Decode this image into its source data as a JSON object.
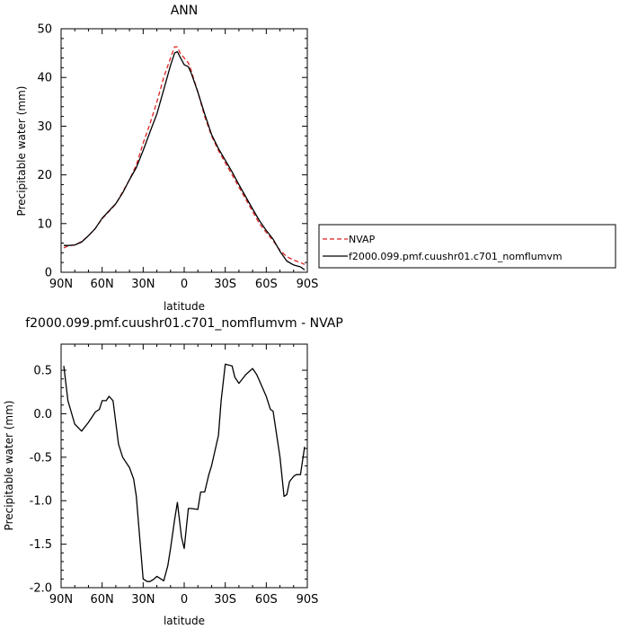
{
  "chart_data": [
    {
      "type": "line",
      "title": "ANN",
      "xlabel": "latitude",
      "ylabel": "Precipitable water  (mm)",
      "xlim": [
        90,
        -90
      ],
      "ylim": [
        0,
        50
      ],
      "xticks": [
        90,
        60,
        30,
        0,
        -30,
        -60,
        -90
      ],
      "xtick_labels": [
        "90N",
        "60N",
        "30N",
        "0",
        "30S",
        "60S",
        "90S"
      ],
      "yticks": [
        0,
        10,
        20,
        30,
        40,
        50
      ],
      "ytick_labels": [
        "0",
        "10",
        "20",
        "30",
        "40",
        "50"
      ],
      "legend_placement": "right",
      "series": [
        {
          "name": "NVAP",
          "color": "#dd2222",
          "dash": "dashed",
          "x": [
            88,
            85,
            80,
            75,
            70,
            65,
            60,
            55,
            50,
            45,
            40,
            35,
            30,
            25,
            20,
            15,
            10,
            7,
            5,
            3,
            0,
            -3,
            -5,
            -10,
            -15,
            -20,
            -25,
            -30,
            -35,
            -40,
            -45,
            -50,
            -55,
            -60,
            -65,
            -70,
            -75,
            -80,
            -85,
            -88
          ],
          "y": [
            5.0,
            5.4,
            5.6,
            6.3,
            7.5,
            9.0,
            11.0,
            12.5,
            14.0,
            16.5,
            19.0,
            22.0,
            26.5,
            30.5,
            35.0,
            40.0,
            44.0,
            46.3,
            46.3,
            45.0,
            44.0,
            43.0,
            41.5,
            37.0,
            32.0,
            28.0,
            25.0,
            22.5,
            20.0,
            17.5,
            15.0,
            12.5,
            10.0,
            8.2,
            6.5,
            4.5,
            3.2,
            2.5,
            2.0,
            1.6
          ]
        },
        {
          "name": "f2000.099.pmf.cuushr01.c701_nomflumvm",
          "color": "#000000",
          "dash": "solid",
          "x": [
            88,
            85,
            80,
            75,
            70,
            65,
            60,
            55,
            50,
            45,
            40,
            35,
            30,
            25,
            20,
            15,
            10,
            7,
            5,
            3,
            0,
            -3,
            -5,
            -10,
            -15,
            -20,
            -25,
            -30,
            -35,
            -40,
            -45,
            -50,
            -55,
            -60,
            -65,
            -70,
            -75,
            -80,
            -85,
            -88
          ],
          "y": [
            5.5,
            5.5,
            5.6,
            6.2,
            7.5,
            9.0,
            11.1,
            12.6,
            14.1,
            16.3,
            19.0,
            21.5,
            25.0,
            28.8,
            32.5,
            37.5,
            42.5,
            45.0,
            45.3,
            44.2,
            42.6,
            42.2,
            41.0,
            37.0,
            32.5,
            28.3,
            25.4,
            23.0,
            20.6,
            18.0,
            15.5,
            13.0,
            10.6,
            8.6,
            6.8,
            4.3,
            2.3,
            1.5,
            1.1,
            0.5
          ]
        }
      ]
    },
    {
      "type": "line",
      "title": "f2000.099.pmf.cuushr01.c701_nomflumvm - NVAP",
      "xlabel": "latitude",
      "ylabel": "Precipitable water  (mm)",
      "xlim": [
        90,
        -90
      ],
      "ylim": [
        -2.0,
        0.8
      ],
      "xticks": [
        90,
        60,
        30,
        0,
        -30,
        -60,
        -90
      ],
      "xtick_labels": [
        "90N",
        "60N",
        "30N",
        "0",
        "30S",
        "60S",
        "90S"
      ],
      "yticks": [
        -2.0,
        -1.5,
        -1.0,
        -0.5,
        0.0,
        0.5
      ],
      "ytick_labels": [
        "-2.0",
        "-1.5",
        "-1.0",
        "-0.5",
        "0.0",
        "0.5"
      ],
      "series": [
        {
          "color": "#000000",
          "dash": "solid",
          "x": [
            88,
            85,
            80,
            75,
            70,
            65,
            62,
            60,
            57,
            55,
            52,
            48,
            45,
            40,
            37,
            35,
            30,
            27,
            25,
            22,
            20,
            17,
            15,
            12,
            10,
            7,
            5,
            2,
            0,
            -3,
            -5,
            -10,
            -12,
            -15,
            -18,
            -20,
            -25,
            -27,
            -30,
            -35,
            -37,
            -40,
            -45,
            -50,
            -53,
            -55,
            -60,
            -63,
            -65,
            -70,
            -73,
            -75,
            -77,
            -80,
            -82,
            -85,
            -88
          ],
          "y": [
            0.55,
            0.15,
            -0.12,
            -0.2,
            -0.1,
            0.02,
            0.05,
            0.15,
            0.15,
            0.2,
            0.15,
            -0.35,
            -0.5,
            -0.62,
            -0.75,
            -0.95,
            -1.9,
            -1.93,
            -1.93,
            -1.9,
            -1.87,
            -1.9,
            -1.92,
            -1.75,
            -1.55,
            -1.22,
            -1.02,
            -1.42,
            -1.55,
            -1.09,
            -1.09,
            -1.1,
            -0.9,
            -0.9,
            -0.7,
            -0.6,
            -0.25,
            0.15,
            0.57,
            0.55,
            0.42,
            0.35,
            0.45,
            0.52,
            0.45,
            0.38,
            0.2,
            0.05,
            0.03,
            -0.5,
            -0.95,
            -0.93,
            -0.78,
            -0.72,
            -0.7,
            -0.7,
            -0.38
          ]
        }
      ]
    }
  ]
}
